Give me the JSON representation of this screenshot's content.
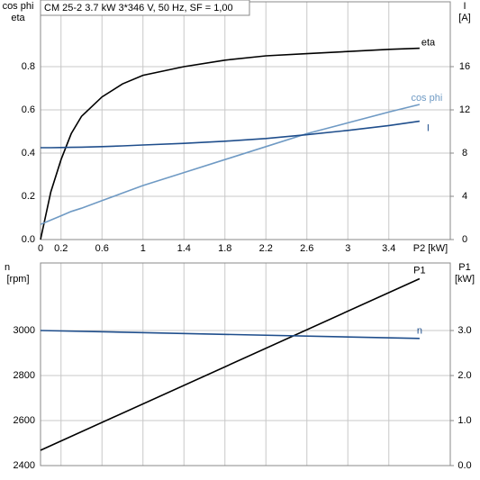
{
  "chart_data": [
    {
      "type": "line",
      "title": "CM 25-2   3.7 kW   3*346 V, 50 Hz, SF = 1,00",
      "xlabel": "P2 [kW]",
      "ylabel": [
        "cos phi",
        "eta"
      ],
      "y2label": [
        "I",
        "[A]"
      ],
      "x": [
        0,
        0.1,
        0.2,
        0.3,
        0.4,
        0.6,
        0.8,
        1.0,
        1.4,
        1.8,
        2.2,
        2.6,
        3.0,
        3.4,
        3.7
      ],
      "xlim": [
        0,
        4.0
      ],
      "xticks": [
        0,
        0.2,
        0.6,
        1.0,
        1.4,
        1.8,
        2.2,
        2.6,
        3.0,
        3.4
      ],
      "ylim": [
        0,
        1.1
      ],
      "yticks": [
        {
          "value": 0,
          "label": "0.0"
        },
        0.2,
        0.4,
        0.6,
        0.8
      ],
      "y2lim": [
        0,
        22
      ],
      "y2ticks": [
        0,
        4,
        8,
        12,
        16
      ],
      "grid": true,
      "series": [
        {
          "name": "eta",
          "color": "#000000",
          "values": [
            0,
            0.22,
            0.37,
            0.49,
            0.57,
            0.66,
            0.72,
            0.76,
            0.8,
            0.83,
            0.85,
            0.86,
            0.87,
            0.88,
            0.885
          ]
        },
        {
          "name": "cos phi",
          "color": "#6f9ac4",
          "values": [
            0.07,
            0.09,
            0.11,
            0.13,
            0.145,
            0.18,
            0.215,
            0.25,
            0.31,
            0.37,
            0.43,
            0.49,
            0.54,
            0.59,
            0.625
          ]
        },
        {
          "name": "I",
          "color": "#1f4e8c",
          "axis": "y2",
          "values": [
            8.5,
            8.5,
            8.52,
            8.53,
            8.55,
            8.6,
            8.67,
            8.75,
            8.9,
            9.1,
            9.35,
            9.7,
            10.1,
            10.55,
            10.95
          ]
        }
      ]
    },
    {
      "type": "line",
      "ylabel": [
        "n",
        "[rpm]"
      ],
      "y2label": [
        "P1",
        "[kW]"
      ],
      "x": [
        0,
        3.7
      ],
      "xlim": [
        0,
        4.0
      ],
      "xticks": [
        0,
        0.2,
        0.6,
        1.0,
        1.4,
        1.8,
        2.2,
        2.6,
        3.0,
        3.4
      ],
      "ylim": [
        2400,
        3300
      ],
      "yticks": [
        2400,
        2600,
        2800,
        3000
      ],
      "y2lim": [
        0,
        4.5
      ],
      "y2ticks": [
        {
          "value": 0,
          "label": "0.0"
        },
        {
          "value": 1,
          "label": "1.0"
        },
        {
          "value": 2,
          "label": "2.0"
        },
        {
          "value": 3,
          "label": "3.0"
        }
      ],
      "grid": true,
      "series": [
        {
          "name": "P1",
          "color": "#000000",
          "axis": "y2",
          "values": [
            0.34,
            4.15
          ]
        },
        {
          "name": "n",
          "color": "#1f4e8c",
          "values": [
            3000,
            2965
          ]
        }
      ]
    }
  ]
}
